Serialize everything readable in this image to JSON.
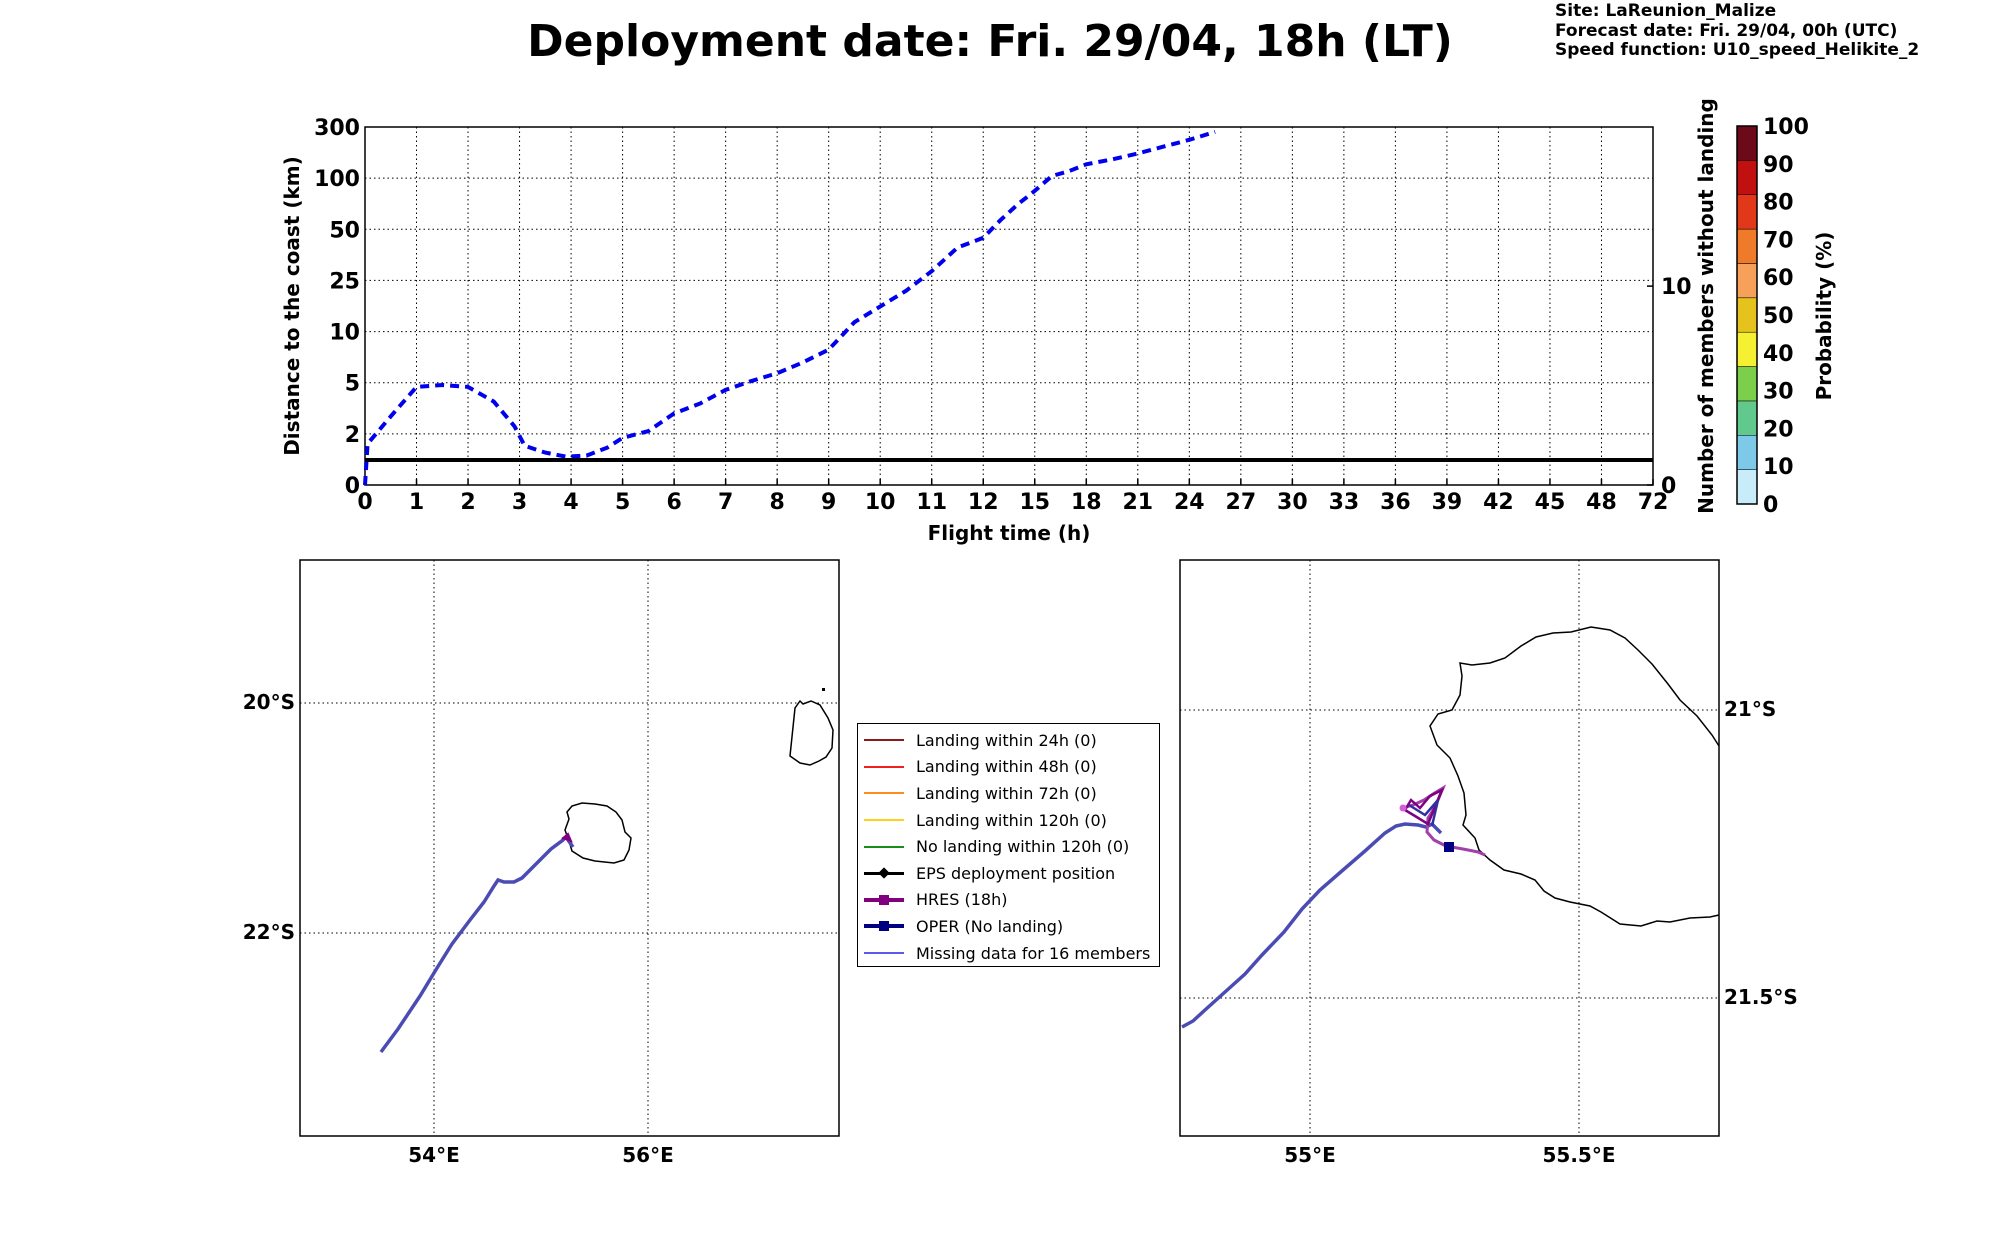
{
  "title": "Deployment date: Fri. 29/04, 18h (LT)",
  "info": {
    "site": "Site: LaReunion_Malize",
    "forecast": "Forecast date: Fri. 29/04, 00h (UTC)",
    "speed": "Speed function: U10_speed_Helikite_2"
  },
  "chart_data": [
    {
      "type": "line",
      "xlabel": "Flight time (h)",
      "ylabel": "Distance to the coast (km)",
      "ylabel_right": "Number of members without landing",
      "x_ticks": [
        "0",
        "1",
        "2",
        "3",
        "4",
        "5",
        "6",
        "7",
        "8",
        "9",
        "10",
        "11",
        "12",
        "15",
        "18",
        "21",
        "24",
        "27",
        "30",
        "33",
        "36",
        "39",
        "42",
        "45",
        "48",
        "72"
      ],
      "y_ticks": [
        "0",
        "2",
        "5",
        "10",
        "25",
        "50",
        "100",
        "300"
      ],
      "y_right_ticks": [
        "0",
        "10"
      ],
      "grid": true,
      "colorbar": {
        "label": "Probability (%)",
        "ticks": [
          "0",
          "10",
          "20",
          "30",
          "40",
          "50",
          "60",
          "70",
          "80",
          "90",
          "100"
        ],
        "colors": [
          "#c8ecfa",
          "#7ec8e8",
          "#62c98c",
          "#7ccf4a",
          "#f6f032",
          "#e6c21c",
          "#f6a05a",
          "#ee7a2a",
          "#e2381a",
          "#c01010",
          "#6c0a1a"
        ]
      },
      "series": [
        {
          "color": "#0000ee",
          "style": "dashed",
          "points": [
            [
              0,
              0
            ],
            [
              0.05,
              4.2
            ],
            [
              0.5,
              7
            ],
            [
              1,
              10
            ],
            [
              1.5,
              10.2
            ],
            [
              2,
              10
            ],
            [
              2.5,
              8.5
            ],
            [
              2.9,
              6
            ],
            [
              3.1,
              4
            ],
            [
              3.5,
              3.3
            ],
            [
              3.9,
              2.9
            ],
            [
              4.3,
              3
            ],
            [
              4.7,
              3.8
            ],
            [
              5,
              4.8
            ],
            [
              5.5,
              5.5
            ],
            [
              6,
              7.3
            ],
            [
              6.5,
              8.3
            ],
            [
              7,
              9.7
            ],
            [
              7.5,
              10.6
            ],
            [
              8,
              11.4
            ],
            [
              8.5,
              12.5
            ],
            [
              9,
              13.8
            ],
            [
              9.5,
              16.6
            ],
            [
              10,
              18.2
            ],
            [
              10.5,
              19.8
            ],
            [
              11,
              21.8
            ],
            [
              11.5,
              24.2
            ],
            [
              12,
              25.2
            ],
            [
              13,
              27
            ],
            [
              14,
              28.6
            ],
            [
              15,
              30
            ],
            [
              16,
              31.5
            ],
            [
              17,
              32
            ],
            [
              18,
              32.7
            ],
            [
              19.5,
              33.2
            ],
            [
              21,
              33.8
            ],
            [
              22.5,
              34.5
            ],
            [
              24,
              35.2
            ],
            [
              25.5,
              36
            ]
          ]
        },
        {
          "color": "#000000",
          "style": "solid",
          "points": [
            [
              0,
              1
            ],
            [
              72,
              1
            ]
          ]
        }
      ]
    }
  ],
  "maps": {
    "left": {
      "lat_labels": [
        "20°S",
        "22°S"
      ],
      "lon_labels": [
        "54°E",
        "56°E"
      ]
    },
    "right": {
      "lat_labels": [
        "21°S",
        "21.5°S"
      ],
      "lon_labels": [
        "55°E",
        "55.5°E"
      ]
    }
  },
  "legend": {
    "items": [
      {
        "label": "Landing within 24h (0)",
        "color": "#8b1a1a",
        "marker": "none"
      },
      {
        "label": "Landing within 48h (0)",
        "color": "#ee2020",
        "marker": "none"
      },
      {
        "label": "Landing within 72h (0)",
        "color": "#ff8c1a",
        "marker": "none"
      },
      {
        "label": "Landing within 120h (0)",
        "color": "#ffd11a",
        "marker": "none"
      },
      {
        "label": "No landing within 120h (0)",
        "color": "#1a8c1a",
        "marker": "none"
      },
      {
        "label": "EPS deployment position",
        "color": "#000000",
        "marker": "diamond"
      },
      {
        "label": "HRES (18h)",
        "color": "#800080",
        "marker": "square"
      },
      {
        "label": "OPER (No landing)",
        "color": "#000080",
        "marker": "square"
      },
      {
        "label": "Missing data for 16 members",
        "color": "#5a5aee",
        "marker": "none"
      }
    ]
  }
}
